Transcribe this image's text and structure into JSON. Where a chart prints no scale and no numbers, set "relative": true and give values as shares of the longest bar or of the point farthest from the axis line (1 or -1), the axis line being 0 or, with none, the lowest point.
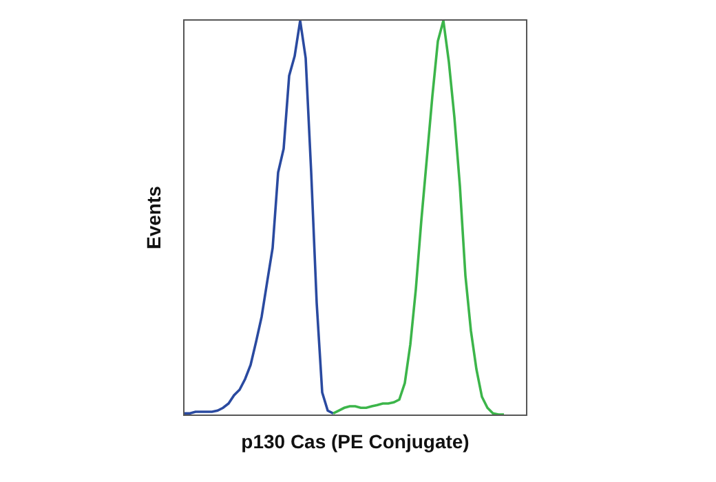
{
  "chart_data": {
    "type": "line",
    "relative": true,
    "xlabel": "p130 Cas (PE Conjugate)",
    "ylabel": "Events",
    "tick_labels": false,
    "marker": "none",
    "line_style": "solid",
    "categories": [
      null,
      null,
      null,
      null,
      null,
      null,
      null,
      null,
      null,
      null,
      null,
      null,
      null,
      null,
      null,
      null,
      null,
      null,
      null,
      null,
      null,
      null,
      null,
      null,
      null,
      null,
      null,
      null,
      null,
      null,
      null,
      null,
      null,
      null,
      null,
      null,
      null,
      null,
      null,
      null,
      null,
      null,
      null,
      null,
      null,
      null,
      null,
      null,
      null,
      null,
      null,
      null,
      null,
      null,
      null,
      null,
      null,
      null,
      null,
      null,
      null,
      null,
      null
    ],
    "series": [
      {
        "color": "#2a4aa0",
        "values": [
          0.003,
          0.003,
          0.007,
          0.007,
          0.007,
          0.007,
          0.01,
          0.017,
          0.028,
          0.049,
          0.063,
          0.09,
          0.126,
          0.185,
          0.248,
          0.336,
          0.423,
          0.615,
          0.675,
          0.86,
          0.91,
          1.0,
          0.905,
          0.615,
          0.283,
          0.056,
          0.01,
          0.003,
          null,
          null,
          null,
          null,
          null,
          null,
          null,
          null,
          null,
          null,
          null,
          null,
          null,
          null,
          null,
          null,
          null,
          null,
          null,
          null,
          null,
          null,
          null,
          null,
          null,
          null,
          null,
          null,
          null,
          null,
          null,
          null,
          null,
          null,
          null
        ]
      },
      {
        "color": "#3cb54a",
        "values": [
          null,
          null,
          null,
          null,
          null,
          null,
          null,
          null,
          null,
          null,
          null,
          null,
          null,
          null,
          null,
          null,
          null,
          null,
          null,
          null,
          null,
          null,
          null,
          null,
          null,
          null,
          null,
          0.003,
          0.01,
          0.017,
          0.021,
          0.021,
          0.017,
          0.017,
          0.021,
          0.024,
          0.028,
          0.028,
          0.031,
          0.038,
          0.08,
          0.178,
          0.318,
          0.493,
          0.65,
          0.808,
          0.948,
          1.0,
          0.895,
          0.755,
          0.58,
          0.353,
          0.213,
          0.115,
          0.045,
          0.017,
          0.003,
          0,
          0,
          null,
          null,
          null,
          null
        ]
      }
    ]
  }
}
